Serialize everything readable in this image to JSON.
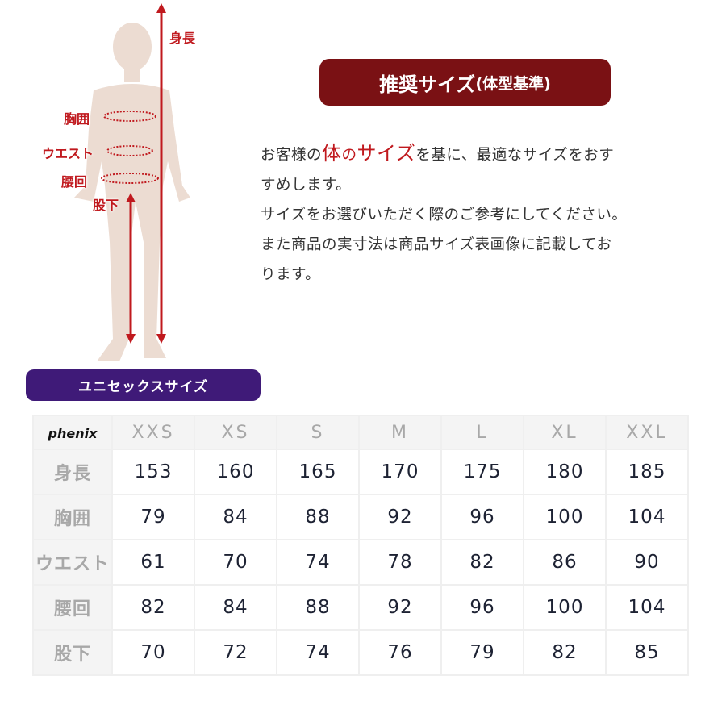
{
  "figure": {
    "labels": {
      "height": "身長",
      "chest": "胸囲",
      "waist": "ウエスト",
      "hip": "腰回",
      "inseam": "股下"
    },
    "colors": {
      "body": "#ecdcd2",
      "measure": "#c0191e"
    }
  },
  "title": {
    "main": "推奨サイズ",
    "sub": "(体型基準)"
  },
  "description": {
    "line1_pre": "お客様の",
    "line1_hl1": "体",
    "line1_hl2": "の",
    "line1_hl3": "サイズ",
    "line1_post": "を基に、最適なサイズをおす",
    "line2": "すめします。",
    "line3": "サイズをお選びいただく際のご参考にしてください。",
    "line4": "また商品の実寸法は商品サイズ表画像に記載してお",
    "line5": "ります。"
  },
  "unisex_label": "ユニセックスサイズ",
  "table": {
    "brand": "phenix",
    "sizes": [
      "XXS",
      "XS",
      "S",
      "M",
      "L",
      "XL",
      "XXL"
    ],
    "rows": [
      {
        "label": "身長",
        "values": [
          "153",
          "160",
          "165",
          "170",
          "175",
          "180",
          "185"
        ]
      },
      {
        "label": "胸囲",
        "values": [
          "79",
          "84",
          "88",
          "92",
          "96",
          "100",
          "104"
        ]
      },
      {
        "label": "ウエスト",
        "values": [
          "61",
          "70",
          "74",
          "78",
          "82",
          "86",
          "90"
        ]
      },
      {
        "label": "腰回",
        "values": [
          "82",
          "84",
          "88",
          "92",
          "96",
          "100",
          "104"
        ]
      },
      {
        "label": "股下",
        "values": [
          "70",
          "72",
          "74",
          "76",
          "79",
          "82",
          "85"
        ]
      }
    ]
  },
  "colors": {
    "title_bg": "#7a1114",
    "unisex_bg": "#3f1a78",
    "accent": "#c0191e"
  }
}
